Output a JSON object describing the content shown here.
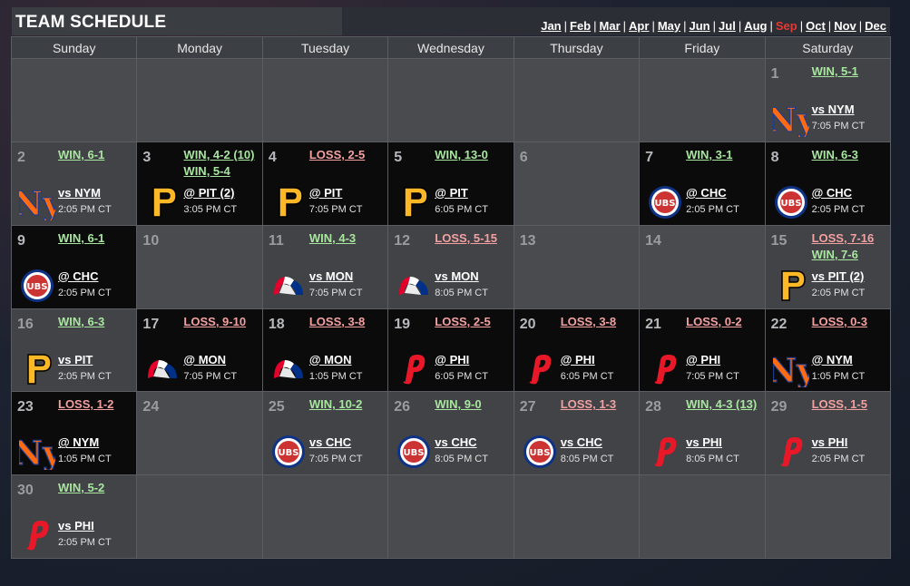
{
  "title": "TEAM SCHEDULE",
  "months": [
    {
      "label": "Jan",
      "current": false
    },
    {
      "label": "Feb",
      "current": false
    },
    {
      "label": "Mar",
      "current": false
    },
    {
      "label": "Apr",
      "current": false
    },
    {
      "label": "May",
      "current": false
    },
    {
      "label": "Jun",
      "current": false
    },
    {
      "label": "Jul",
      "current": false
    },
    {
      "label": "Aug",
      "current": false
    },
    {
      "label": "Sep",
      "current": true
    },
    {
      "label": "Oct",
      "current": false
    },
    {
      "label": "Nov",
      "current": false
    },
    {
      "label": "Dec",
      "current": false
    }
  ],
  "month_separator": "|",
  "weekdays": [
    "Sunday",
    "Monday",
    "Tuesday",
    "Wednesday",
    "Thursday",
    "Friday",
    "Saturday"
  ],
  "colors": {
    "win": "#a8e6a0",
    "loss": "#f2a0a0",
    "current_month": "#e53935"
  },
  "cells": [
    {
      "day": "",
      "kind": "empty"
    },
    {
      "day": "",
      "kind": "empty"
    },
    {
      "day": "",
      "kind": "empty"
    },
    {
      "day": "",
      "kind": "empty"
    },
    {
      "day": "",
      "kind": "empty"
    },
    {
      "day": "",
      "kind": "empty"
    },
    {
      "day": "1",
      "kind": "game",
      "shade": "grey",
      "results": [
        {
          "type": "win",
          "text": "WIN, 5-1"
        }
      ],
      "logo": "mets-logo-icon",
      "opponent": "vs NYM",
      "time": "7:05 PM CT"
    },
    {
      "day": "2",
      "kind": "game",
      "shade": "grey",
      "results": [
        {
          "type": "win",
          "text": "WIN, 6-1"
        }
      ],
      "logo": "mets-logo-icon",
      "opponent": "vs NYM",
      "time": "2:05 PM CT"
    },
    {
      "day": "3",
      "kind": "game",
      "shade": "black",
      "results": [
        {
          "type": "win",
          "text": "WIN, 4-2 (10)"
        },
        {
          "type": "win",
          "text": "WIN, 5-4"
        }
      ],
      "logo": "pirates-logo-icon",
      "opponent": "@ PIT (2)",
      "time": "3:05 PM CT"
    },
    {
      "day": "4",
      "kind": "game",
      "shade": "black",
      "results": [
        {
          "type": "loss",
          "text": "LOSS, 2-5"
        }
      ],
      "logo": "pirates-logo-icon",
      "opponent": "@ PIT",
      "time": "7:05 PM CT"
    },
    {
      "day": "5",
      "kind": "game",
      "shade": "black",
      "results": [
        {
          "type": "win",
          "text": "WIN, 13-0"
        }
      ],
      "logo": "pirates-logo-icon",
      "opponent": "@ PIT",
      "time": "6:05 PM CT"
    },
    {
      "day": "6",
      "kind": "off"
    },
    {
      "day": "7",
      "kind": "game",
      "shade": "black",
      "results": [
        {
          "type": "win",
          "text": "WIN, 3-1"
        }
      ],
      "logo": "cubs-logo-icon",
      "opponent": "@ CHC",
      "time": "2:05 PM CT"
    },
    {
      "day": "8",
      "kind": "game",
      "shade": "black",
      "results": [
        {
          "type": "win",
          "text": "WIN, 6-3"
        }
      ],
      "logo": "cubs-logo-icon",
      "opponent": "@ CHC",
      "time": "2:05 PM CT"
    },
    {
      "day": "9",
      "kind": "game",
      "shade": "black",
      "results": [
        {
          "type": "win",
          "text": "WIN, 6-1"
        }
      ],
      "logo": "cubs-logo-icon",
      "opponent": "@ CHC",
      "time": "2:05 PM CT"
    },
    {
      "day": "10",
      "kind": "off"
    },
    {
      "day": "11",
      "kind": "game",
      "shade": "grey",
      "results": [
        {
          "type": "win",
          "text": "WIN, 4-3"
        }
      ],
      "logo": "expos-logo-icon",
      "opponent": "vs MON",
      "time": "7:05 PM CT"
    },
    {
      "day": "12",
      "kind": "game",
      "shade": "grey",
      "results": [
        {
          "type": "loss",
          "text": "LOSS, 5-15"
        }
      ],
      "logo": "expos-logo-icon",
      "opponent": "vs MON",
      "time": "8:05 PM CT"
    },
    {
      "day": "13",
      "kind": "off"
    },
    {
      "day": "14",
      "kind": "off"
    },
    {
      "day": "15",
      "kind": "game",
      "shade": "grey",
      "results": [
        {
          "type": "loss",
          "text": "LOSS, 7-16"
        },
        {
          "type": "win",
          "text": "WIN, 7-6"
        }
      ],
      "logo": "pirates-logo-icon",
      "opponent": "vs PIT (2)",
      "time": "2:05 PM CT"
    },
    {
      "day": "16",
      "kind": "game",
      "shade": "grey",
      "results": [
        {
          "type": "win",
          "text": "WIN, 6-3"
        }
      ],
      "logo": "pirates-logo-icon",
      "opponent": "vs PIT",
      "time": "2:05 PM CT"
    },
    {
      "day": "17",
      "kind": "game",
      "shade": "black",
      "results": [
        {
          "type": "loss",
          "text": "LOSS, 9-10"
        }
      ],
      "logo": "expos-logo-icon",
      "opponent": "@ MON",
      "time": "7:05 PM CT"
    },
    {
      "day": "18",
      "kind": "game",
      "shade": "black",
      "results": [
        {
          "type": "loss",
          "text": "LOSS, 3-8"
        }
      ],
      "logo": "expos-logo-icon",
      "opponent": "@ MON",
      "time": "1:05 PM CT"
    },
    {
      "day": "19",
      "kind": "game",
      "shade": "black",
      "results": [
        {
          "type": "loss",
          "text": "LOSS, 2-5"
        }
      ],
      "logo": "phillies-logo-icon",
      "opponent": "@ PHI",
      "time": "6:05 PM CT"
    },
    {
      "day": "20",
      "kind": "game",
      "shade": "black",
      "results": [
        {
          "type": "loss",
          "text": "LOSS, 3-8"
        }
      ],
      "logo": "phillies-logo-icon",
      "opponent": "@ PHI",
      "time": "6:05 PM CT"
    },
    {
      "day": "21",
      "kind": "game",
      "shade": "black",
      "results": [
        {
          "type": "loss",
          "text": "LOSS, 0-2"
        }
      ],
      "logo": "phillies-logo-icon",
      "opponent": "@ PHI",
      "time": "7:05 PM CT"
    },
    {
      "day": "22",
      "kind": "game",
      "shade": "black",
      "results": [
        {
          "type": "loss",
          "text": "LOSS, 0-3"
        }
      ],
      "logo": "mets-logo-icon",
      "opponent": "@ NYM",
      "time": "1:05 PM CT"
    },
    {
      "day": "23",
      "kind": "game",
      "shade": "black",
      "results": [
        {
          "type": "loss",
          "text": "LOSS, 1-2"
        }
      ],
      "logo": "mets-logo-icon",
      "opponent": "@ NYM",
      "time": "1:05 PM CT"
    },
    {
      "day": "24",
      "kind": "off"
    },
    {
      "day": "25",
      "kind": "game",
      "shade": "grey",
      "results": [
        {
          "type": "win",
          "text": "WIN, 10-2"
        }
      ],
      "logo": "cubs-logo-icon",
      "opponent": "vs CHC",
      "time": "7:05 PM CT"
    },
    {
      "day": "26",
      "kind": "game",
      "shade": "grey",
      "results": [
        {
          "type": "win",
          "text": "WIN, 9-0"
        }
      ],
      "logo": "cubs-logo-icon",
      "opponent": "vs CHC",
      "time": "8:05 PM CT"
    },
    {
      "day": "27",
      "kind": "game",
      "shade": "grey",
      "results": [
        {
          "type": "loss",
          "text": "LOSS, 1-3"
        }
      ],
      "logo": "cubs-logo-icon",
      "opponent": "vs CHC",
      "time": "8:05 PM CT"
    },
    {
      "day": "28",
      "kind": "game",
      "shade": "grey",
      "results": [
        {
          "type": "win",
          "text": "WIN, 4-3 (13)"
        }
      ],
      "logo": "phillies-logo-icon",
      "opponent": "vs PHI",
      "time": "8:05 PM CT"
    },
    {
      "day": "29",
      "kind": "game",
      "shade": "grey",
      "results": [
        {
          "type": "loss",
          "text": "LOSS, 1-5"
        }
      ],
      "logo": "phillies-logo-icon",
      "opponent": "vs PHI",
      "time": "2:05 PM CT"
    },
    {
      "day": "30",
      "kind": "game",
      "shade": "grey",
      "results": [
        {
          "type": "win",
          "text": "WIN, 5-2"
        }
      ],
      "logo": "phillies-logo-icon",
      "opponent": "vs PHI",
      "time": "2:05 PM CT"
    },
    {
      "day": "",
      "kind": "empty"
    },
    {
      "day": "",
      "kind": "empty"
    },
    {
      "day": "",
      "kind": "empty"
    },
    {
      "day": "",
      "kind": "empty"
    },
    {
      "day": "",
      "kind": "empty"
    },
    {
      "day": "",
      "kind": "empty"
    }
  ]
}
